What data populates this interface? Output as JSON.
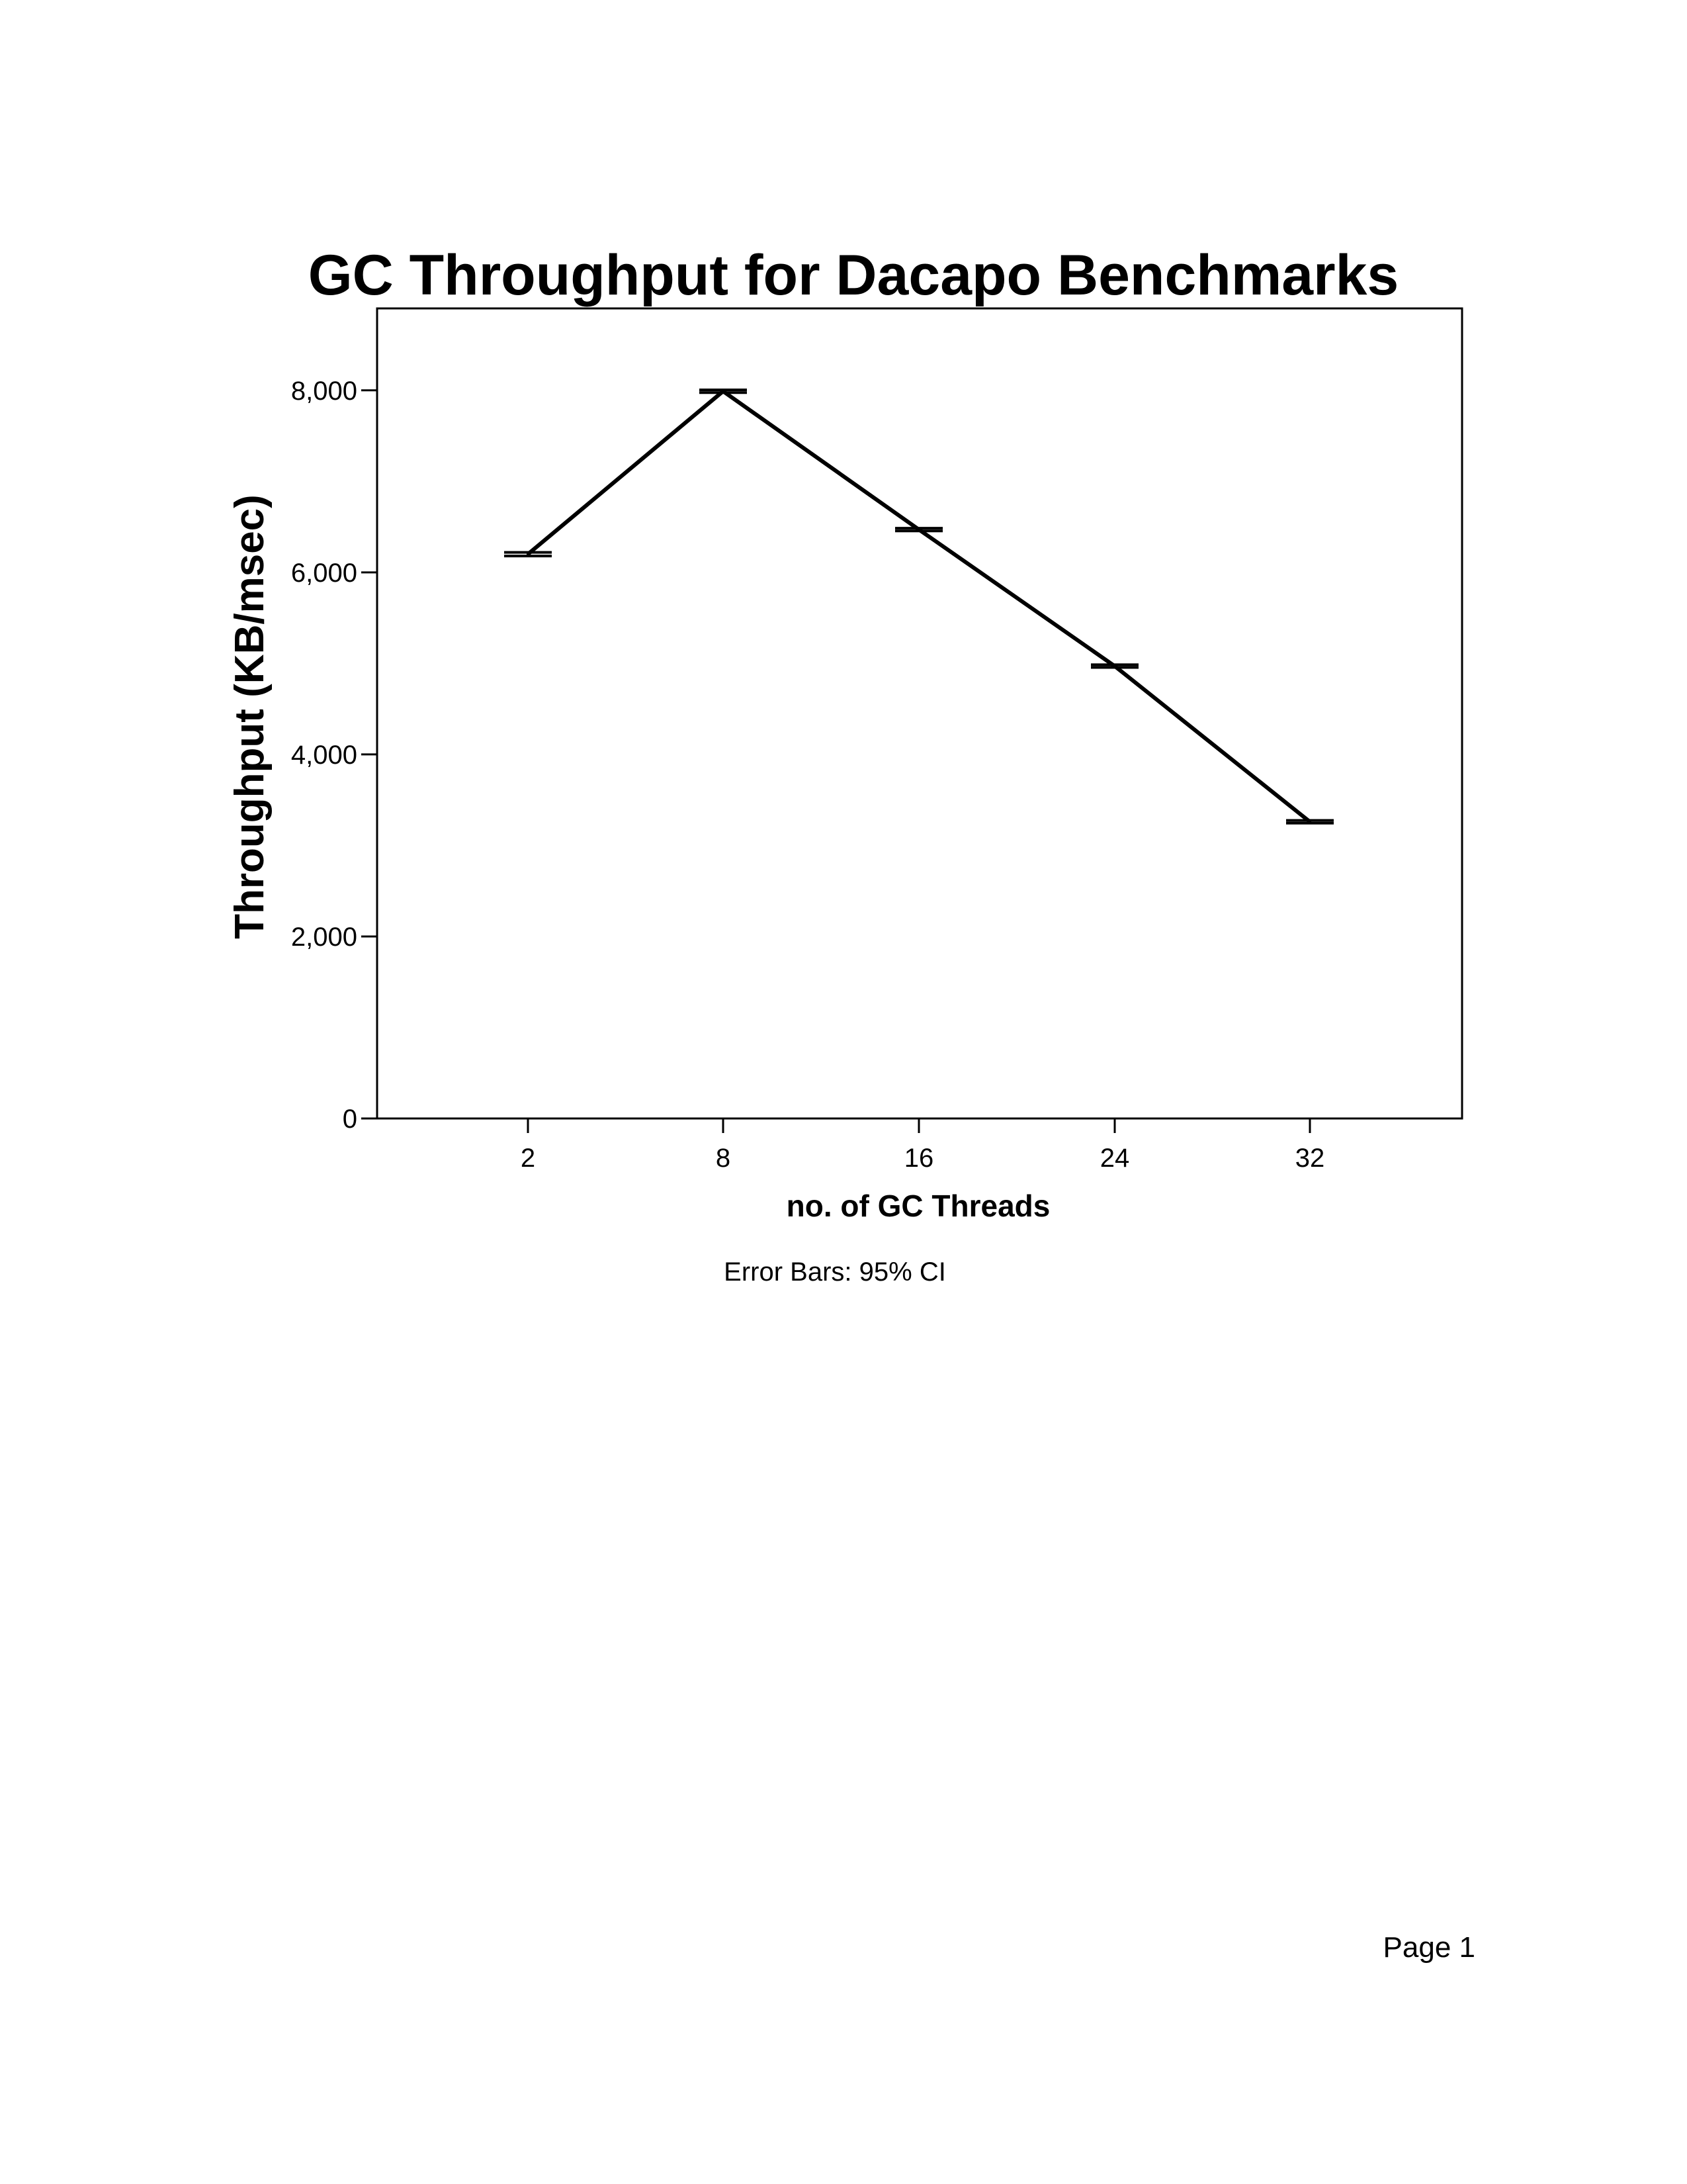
{
  "chart_data": {
    "type": "line",
    "title": "GC Throughput for Dacapo Benchmarks",
    "xlabel": "no. of GC Threads",
    "ylabel": "Throughput (KB/msec)",
    "categories": [
      "2",
      "8",
      "16",
      "24",
      "32"
    ],
    "series": [
      {
        "values": [
          6200,
          7990,
          6470,
          4970,
          3260
        ],
        "ci_lower": [
          6180,
          7975,
          6455,
          4955,
          3245
        ],
        "ci_upper": [
          6220,
          8005,
          6485,
          4985,
          3275
        ]
      }
    ],
    "yticks": [
      0,
      2000,
      4000,
      6000,
      8000
    ],
    "ytick_labels": [
      "0",
      "2,000",
      "4,000",
      "6,000",
      "8,000"
    ],
    "ylim": [
      0,
      8900
    ],
    "grid": false,
    "footnote": "Error Bars: 95% CI",
    "colors": {
      "line": "#000000",
      "background": "#ffffff"
    }
  },
  "page": {
    "number_label": "Page 1"
  }
}
